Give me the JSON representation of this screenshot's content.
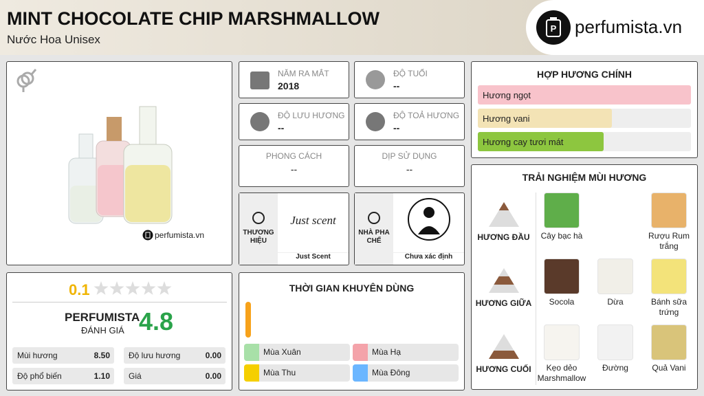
{
  "header": {
    "title": "MINT CHOCOLATE CHIP MARSHMALLOW",
    "subtitle": "Nước Hoa Unisex",
    "logo": "perfumista.vn"
  },
  "image": {
    "watermark": "perfumista.vn"
  },
  "info": [
    {
      "label": "NĂM RA MẮT",
      "value": "2018"
    },
    {
      "label": "ĐỘ TUỔI",
      "value": "--"
    },
    {
      "label": "ĐỘ LƯU HƯƠNG",
      "value": "--"
    },
    {
      "label": "ĐỘ TOẢ HƯƠNG",
      "value": "--"
    },
    {
      "label": "PHONG CÁCH",
      "value": "--"
    },
    {
      "label": "DỊP SỬ DỤNG",
      "value": "--"
    }
  ],
  "brand": {
    "label": "THƯƠNG HIỆU",
    "logo": "Just scent",
    "name": "Just Scent"
  },
  "perfumer": {
    "label": "NHÀ PHA CHẾ",
    "name": "Chưa xác định"
  },
  "rating": {
    "user_score": 0.1,
    "brand_label": "PERFUMISTA",
    "brand_sub": "ĐÁNH GIÁ",
    "score": 4.8
  },
  "stats": [
    {
      "label": "Mùi hương",
      "value": 8.5,
      "value_label": "8.50"
    },
    {
      "label": "Độ lưu hương",
      "value": 0,
      "value_label": "0.00"
    },
    {
      "label": "Độ phổ biến",
      "value": 1.1,
      "value_label": "1.10"
    },
    {
      "label": "Giá",
      "value": 0,
      "value_label": "0.00"
    }
  ],
  "accords": {
    "title": "HỢP HƯƠNG CHÍNH",
    "xlim": [
      0,
      100
    ],
    "items": [
      {
        "name": "Hương ngọt",
        "value": 100,
        "color": "#f8c3cb"
      },
      {
        "name": "Hương vani",
        "value": 63,
        "color": "#f3e3b5"
      },
      {
        "name": "Hương cay tươi mát",
        "value": 59,
        "color": "#8dc63f"
      }
    ]
  },
  "seasons": {
    "title": "THỜI GIAN KHUYÊN DÙNG",
    "items": [
      "Mùa Xuân",
      "Mùa Hạ",
      "Mùa Thu",
      "Mùa Đông"
    ]
  },
  "notes": {
    "title": "TRẢI NGHIỆM MÙI HƯƠNG",
    "tiers": [
      {
        "label": "HƯƠNG ĐẦU",
        "notes": [
          "Cây bạc hà",
          "Rượu Rum trắng"
        ]
      },
      {
        "label": "HƯƠNG GIỮA",
        "notes": [
          "Socola",
          "Dừa",
          "Bánh sữa trứng"
        ]
      },
      {
        "label": "HƯƠNG CUỐI",
        "notes": [
          "Kẹo dẻo Marshmallow",
          "Đường",
          "Quả Vani"
        ]
      }
    ]
  }
}
